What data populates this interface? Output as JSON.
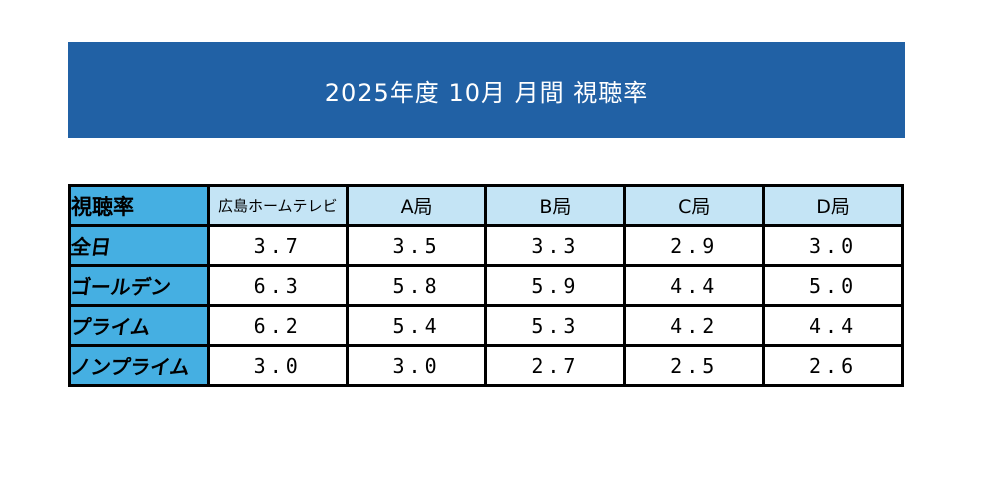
{
  "banner": {
    "title": "2025年度 10月 月間 視聴率",
    "bg_color": "#2161A5",
    "text_color": "#FFFFFF"
  },
  "table": {
    "corner_label": "視聴率",
    "columns": [
      "広島ホームテレビ",
      "A局",
      "B局",
      "C局",
      "D局"
    ],
    "rows": [
      {
        "label": "全日",
        "values": [
          "3.7",
          "3.5",
          "3.3",
          "2.9",
          "3.0"
        ]
      },
      {
        "label": "ゴールデン",
        "values": [
          "6.3",
          "5.8",
          "5.9",
          "4.4",
          "5.0"
        ]
      },
      {
        "label": "プライム",
        "values": [
          "6.2",
          "5.4",
          "5.3",
          "4.2",
          "4.4"
        ]
      },
      {
        "label": "ノンプライム",
        "values": [
          "3.0",
          "3.0",
          "2.7",
          "2.5",
          "2.6"
        ]
      }
    ],
    "colors": {
      "row_header_bg": "#45AFE2",
      "col_header_bg": "#C4E4F5",
      "border": "#000000",
      "value_text": "#000000"
    }
  },
  "chart_data": {
    "type": "table",
    "title": "2025年度 10月 月間 視聴率",
    "row_labels": [
      "全日",
      "ゴールデン",
      "プライム",
      "ノンプライム"
    ],
    "columns": [
      "広島ホームテレビ",
      "A局",
      "B局",
      "C局",
      "D局"
    ],
    "values": [
      [
        3.7,
        3.5,
        3.3,
        2.9,
        3.0
      ],
      [
        6.3,
        5.8,
        5.9,
        4.4,
        5.0
      ],
      [
        6.2,
        5.4,
        5.3,
        4.2,
        4.4
      ],
      [
        3.0,
        3.0,
        2.7,
        2.5,
        2.6
      ]
    ],
    "unit": "%",
    "legend_position": "none",
    "grid": true
  }
}
